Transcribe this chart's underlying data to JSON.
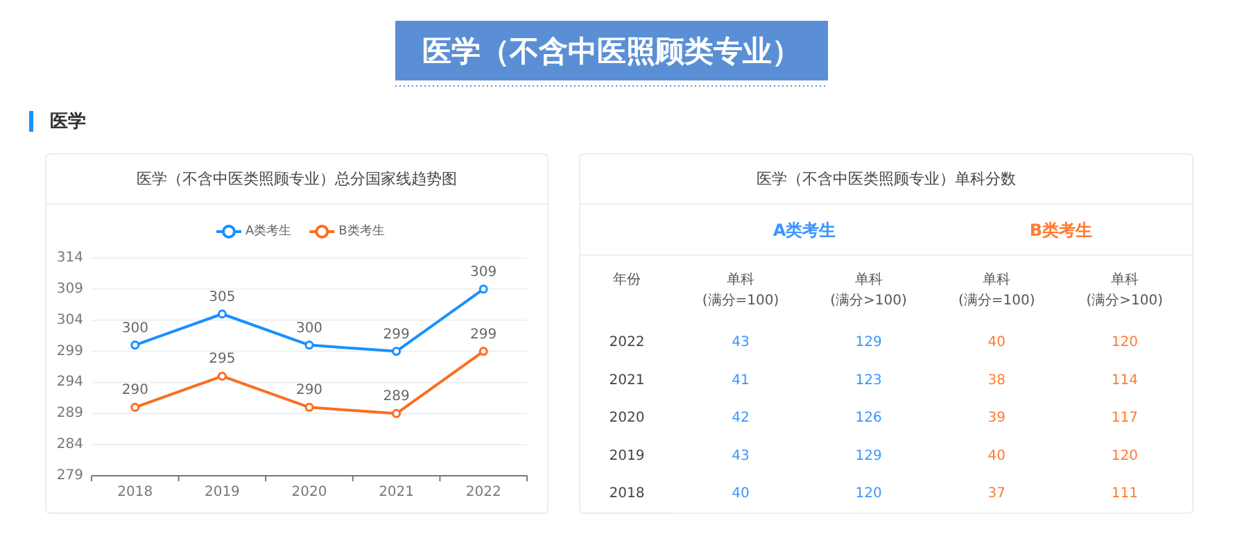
{
  "chart_data": [
    {
      "type": "line",
      "title": "医学（不含中医类照顾专业）总分国家线趋势图",
      "annotations": [
        "医学（不含中医照顾类专业）",
        "医学"
      ],
      "categories": [
        "2018",
        "2019",
        "2020",
        "2021",
        "2022"
      ],
      "series": [
        {
          "name": "A类考生",
          "color": "#1890ff",
          "values": [
            300,
            305,
            300,
            299,
            309
          ]
        },
        {
          "name": "B类考生",
          "color": "#fa6e1e",
          "values": [
            290,
            295,
            290,
            289,
            299
          ]
        }
      ],
      "ylim": [
        279,
        314
      ],
      "yticks": [
        279,
        284,
        289,
        294,
        299,
        304,
        309,
        314
      ],
      "grid": "y",
      "legend": "top",
      "marker": "circle",
      "line_style": "solid",
      "data_labels": true
    },
    {
      "type": "heatmap",
      "title": "医学（不含中医类照顾专业）单科分数",
      "annotations": [
        "A类考生",
        "B类考生"
      ],
      "ylabel": "年份",
      "categories": [
        "单科 (满分=100)",
        "单科 (满分>100)",
        "单科 (满分=100)",
        "单科 (满分>100)"
      ],
      "y_categories": [
        "2022",
        "2021",
        "2020",
        "2019",
        "2018"
      ],
      "colors": [
        "#3a95ff",
        "#3a95ff",
        "#ff7a2e",
        "#ff7a2e"
      ],
      "cells": [
        [
          43,
          129,
          40,
          120
        ],
        [
          41,
          123,
          38,
          114
        ],
        [
          42,
          126,
          39,
          117
        ],
        [
          43,
          129,
          40,
          120
        ],
        [
          40,
          120,
          37,
          111
        ]
      ],
      "data_labels": true
    }
  ]
}
